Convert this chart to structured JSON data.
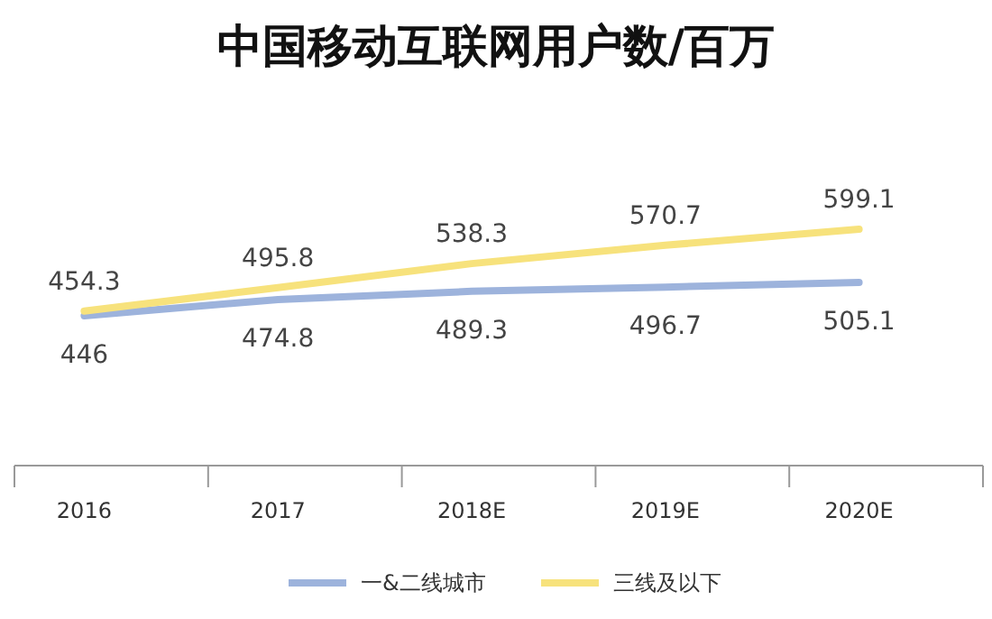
{
  "chart_data": {
    "type": "line",
    "title": "中国移动互联网用户数/百万",
    "categories": [
      "2016",
      "2017",
      "2018E",
      "2019E",
      "2020E"
    ],
    "series": [
      {
        "name": "一&二线城市",
        "color": "#9db3dc",
        "values": [
          446,
          474.8,
          489.3,
          496.7,
          505.1
        ]
      },
      {
        "name": "三线及以下",
        "color": "#f7e27c",
        "values": [
          454.3,
          495.8,
          538.3,
          570.7,
          599.1
        ]
      }
    ],
    "data_labels": true,
    "legend": "bottom",
    "grid": false,
    "marker": "none",
    "line_style": "solid"
  }
}
